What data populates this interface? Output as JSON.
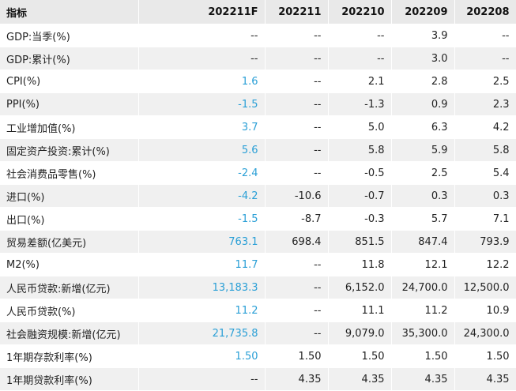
{
  "header": {
    "indicator": "指标",
    "periods": [
      "202211F",
      "202211",
      "202210",
      "202209",
      "202208"
    ]
  },
  "colors": {
    "forecast": "#2a9fd6",
    "header_bg": "#e9e9e9",
    "stripe": "#f0f0f0"
  },
  "rows": [
    {
      "label": "GDP:当季(%)",
      "values": [
        "--",
        "--",
        "--",
        "3.9",
        "--"
      ]
    },
    {
      "label": "GDP:累计(%)",
      "values": [
        "--",
        "--",
        "--",
        "3.0",
        "--"
      ]
    },
    {
      "label": "CPI(%)",
      "values": [
        "1.6",
        "--",
        "2.1",
        "2.8",
        "2.5"
      ]
    },
    {
      "label": "PPI(%)",
      "values": [
        "-1.5",
        "--",
        "-1.3",
        "0.9",
        "2.3"
      ]
    },
    {
      "label": "工业增加值(%)",
      "values": [
        "3.7",
        "--",
        "5.0",
        "6.3",
        "4.2"
      ]
    },
    {
      "label": "固定资产投资:累计(%)",
      "values": [
        "5.6",
        "--",
        "5.8",
        "5.9",
        "5.8"
      ]
    },
    {
      "label": "社会消费品零售(%)",
      "values": [
        "-2.4",
        "--",
        "-0.5",
        "2.5",
        "5.4"
      ]
    },
    {
      "label": "进口(%)",
      "values": [
        "-4.2",
        "-10.6",
        "-0.7",
        "0.3",
        "0.3"
      ]
    },
    {
      "label": "出口(%)",
      "values": [
        "-1.5",
        "-8.7",
        "-0.3",
        "5.7",
        "7.1"
      ]
    },
    {
      "label": "贸易差额(亿美元)",
      "values": [
        "763.1",
        "698.4",
        "851.5",
        "847.4",
        "793.9"
      ]
    },
    {
      "label": "M2(%)",
      "values": [
        "11.7",
        "--",
        "11.8",
        "12.1",
        "12.2"
      ]
    },
    {
      "label": "人民币贷款:新增(亿元)",
      "values": [
        "13,183.3",
        "--",
        "6,152.0",
        "24,700.0",
        "12,500.0"
      ]
    },
    {
      "label": "人民币贷款(%)",
      "values": [
        "11.2",
        "--",
        "11.1",
        "11.2",
        "10.9"
      ]
    },
    {
      "label": "社会融资规模:新增(亿元)",
      "values": [
        "21,735.8",
        "--",
        "9,079.0",
        "35,300.0",
        "24,300.0"
      ]
    },
    {
      "label": "1年期存款利率(%)",
      "values": [
        "1.50",
        "1.50",
        "1.50",
        "1.50",
        "1.50"
      ]
    },
    {
      "label": "1年期贷款利率(%)",
      "values": [
        "--",
        "4.35",
        "4.35",
        "4.35",
        "4.35"
      ]
    }
  ]
}
